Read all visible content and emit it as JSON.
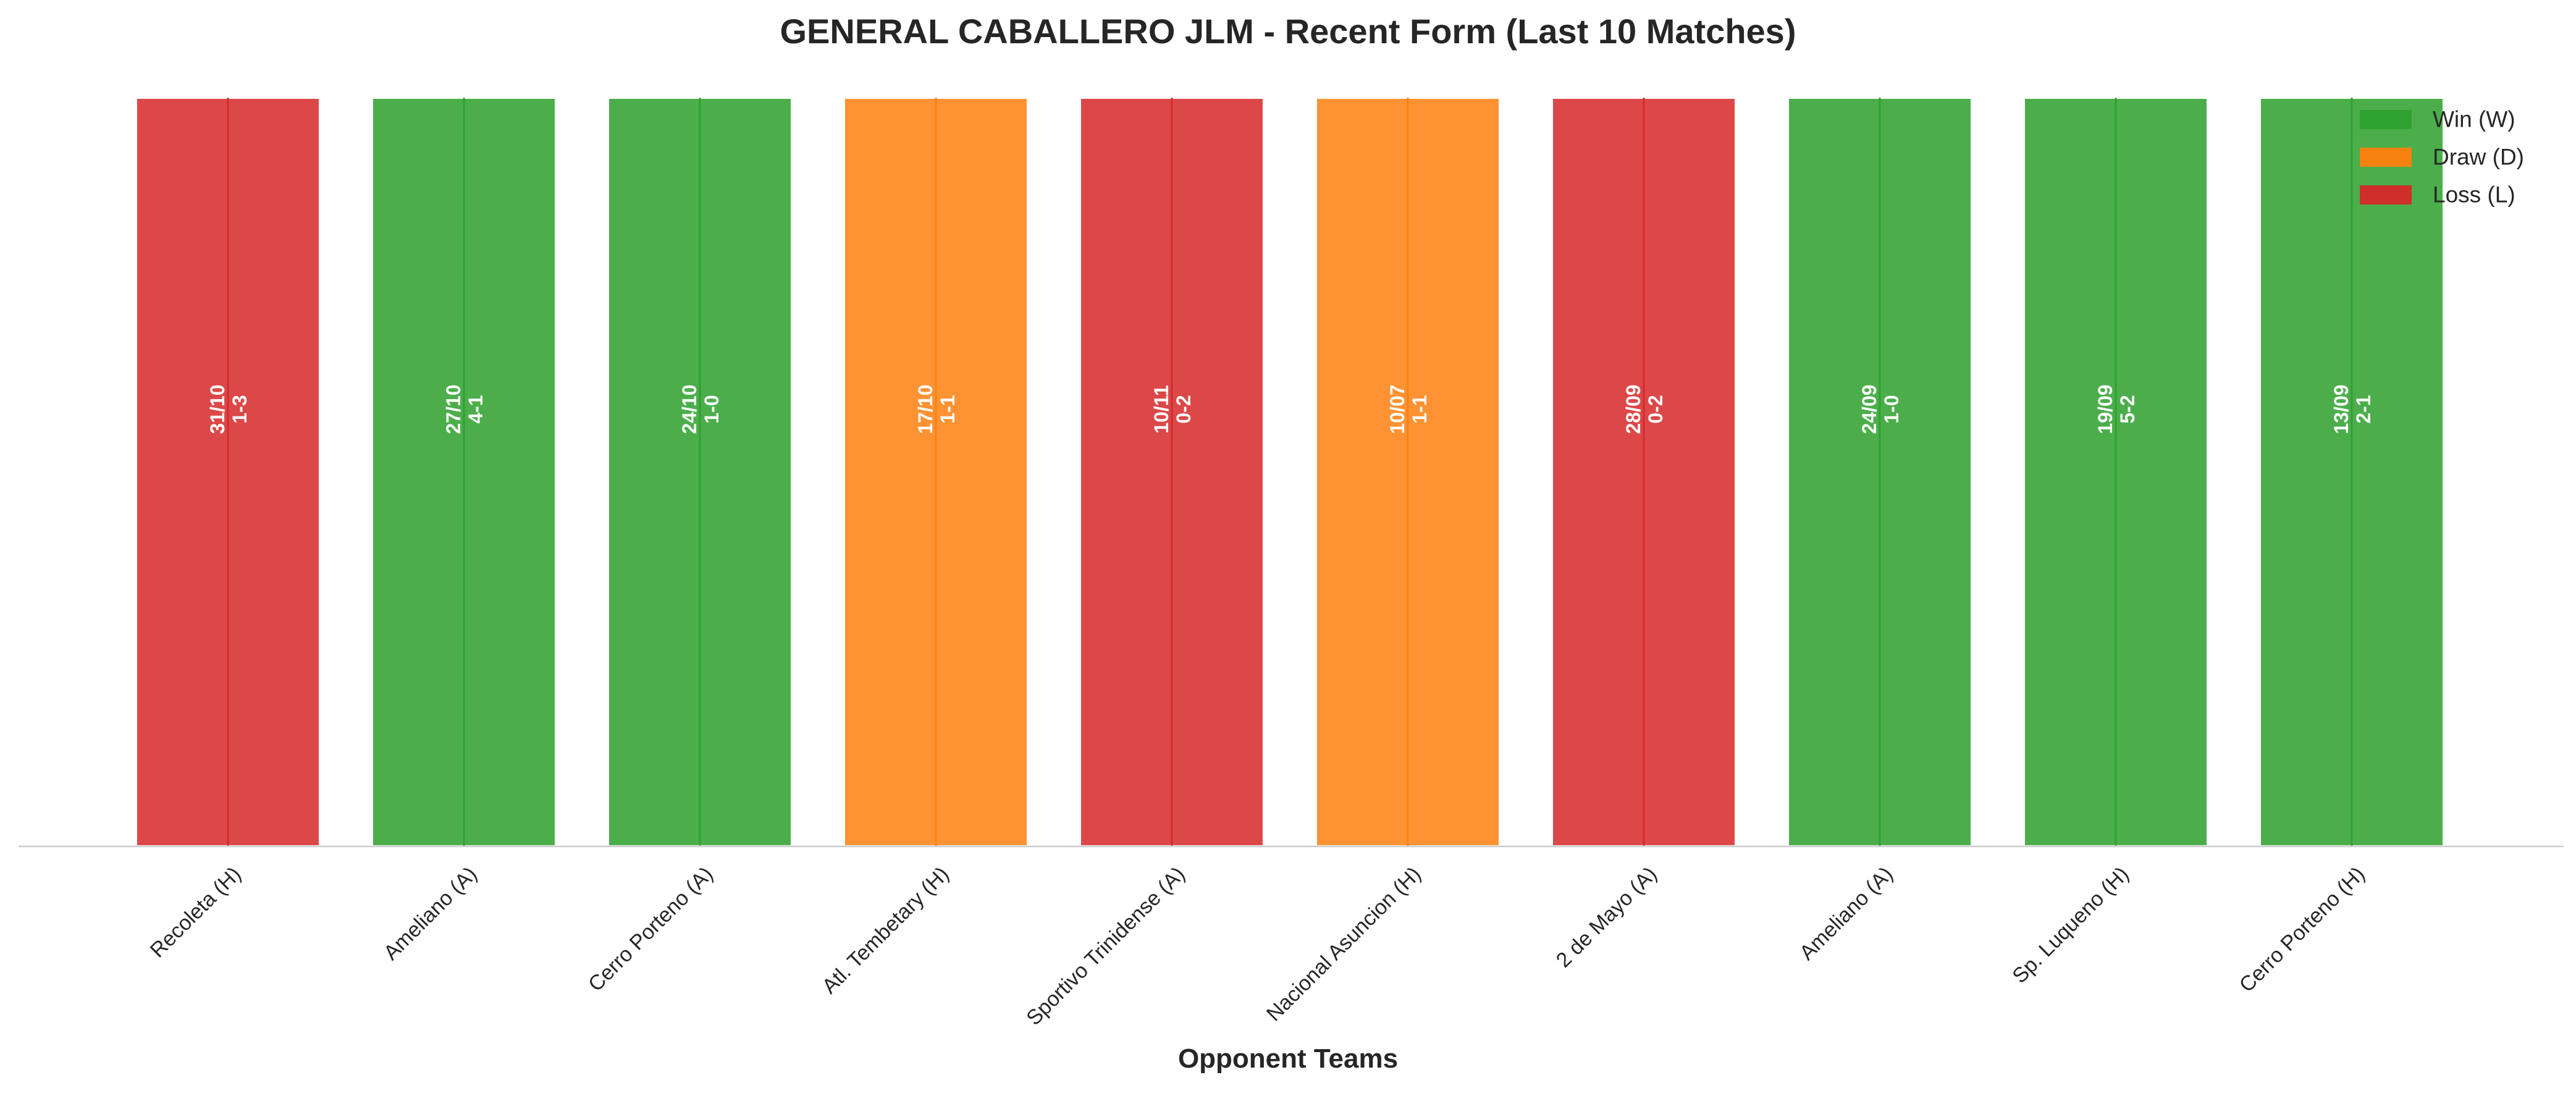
{
  "chart_data": {
    "type": "bar",
    "title": "GENERAL CABALLERO JLM - Recent Form (Last 10 Matches)",
    "xlabel": "Opponent Teams",
    "ylabel": "",
    "grid": false,
    "legend_position": "top-right",
    "categories": [
      "Recoleta (H)",
      "Ameliano (A)",
      "Cerro Porteno (A)",
      "Atl. Tembetary (H)",
      "Sportivo Trinidense (A)",
      "Nacional Asuncion (H)",
      "2 de Mayo (A)",
      "Ameliano (A)",
      "Sp. Luqueno (H)",
      "Cerro Porteno (H)"
    ],
    "values": [
      1,
      1,
      1,
      1,
      1,
      1,
      1,
      1,
      1,
      1
    ],
    "ylim": [
      0,
      1.0
    ],
    "results": [
      "L",
      "W",
      "W",
      "D",
      "L",
      "D",
      "L",
      "W",
      "W",
      "W"
    ],
    "dates": [
      "31/10",
      "27/10",
      "24/10",
      "17/10",
      "10/11",
      "10/07",
      "28/09",
      "24/09",
      "19/09",
      "13/09"
    ],
    "scores": [
      "1-3",
      "4-1",
      "1-0",
      "1-1",
      "0-2",
      "1-1",
      "0-2",
      "1-0",
      "5-2",
      "2-1"
    ],
    "legend": [
      {
        "key": "W",
        "label": "Win (W)",
        "color": "#2ca02c"
      },
      {
        "key": "D",
        "label": "Draw (D)",
        "color": "#ff7f0e"
      },
      {
        "key": "L",
        "label": "Loss (L)",
        "color": "#d62728"
      }
    ],
    "colors": {
      "W": "#2ca02c",
      "D": "#ff7f0e",
      "L": "#d62728"
    }
  }
}
